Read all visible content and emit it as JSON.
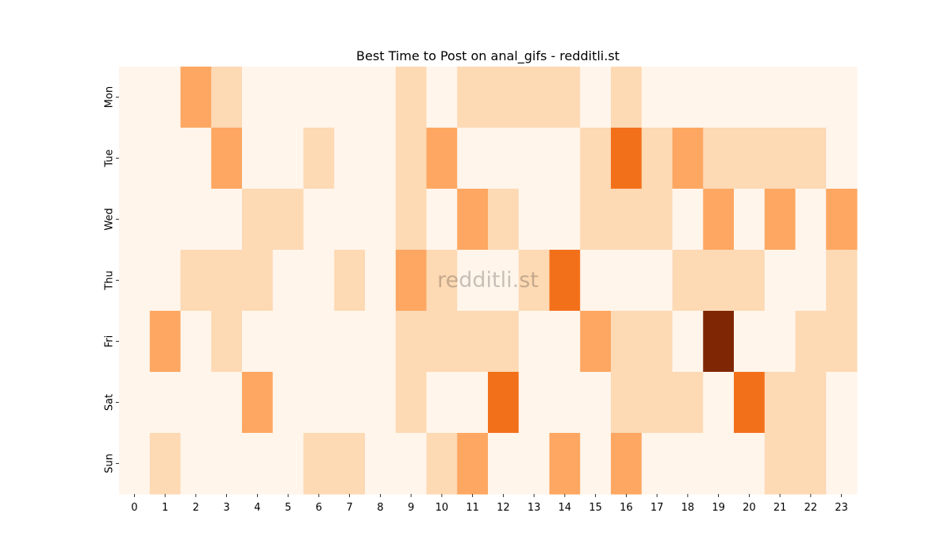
{
  "chart_data": {
    "type": "heatmap",
    "title": "Best Time to Post on anal_gifs - redditli.st",
    "watermark": "redditli.st",
    "x_labels": [
      "0",
      "1",
      "2",
      "3",
      "4",
      "5",
      "6",
      "7",
      "8",
      "9",
      "10",
      "11",
      "12",
      "13",
      "14",
      "15",
      "16",
      "17",
      "18",
      "19",
      "20",
      "21",
      "22",
      "23"
    ],
    "y_labels": [
      "Mon",
      "Tue",
      "Wed",
      "Thu",
      "Fri",
      "Sat",
      "Sun"
    ],
    "values": [
      [
        0,
        0,
        2,
        1,
        0,
        0,
        0,
        0,
        0,
        1,
        0,
        1,
        1,
        1,
        1,
        0,
        1,
        0,
        0,
        0,
        0,
        0,
        0,
        0
      ],
      [
        0,
        0,
        0,
        2,
        0,
        0,
        1,
        0,
        0,
        1,
        2,
        0,
        0,
        0,
        0,
        1,
        3,
        1,
        2,
        1,
        1,
        1,
        1,
        0
      ],
      [
        0,
        0,
        0,
        0,
        1,
        1,
        0,
        0,
        0,
        1,
        0,
        2,
        1,
        0,
        0,
        1,
        1,
        1,
        0,
        2,
        0,
        2,
        0,
        2
      ],
      [
        0,
        0,
        1,
        1,
        1,
        0,
        0,
        1,
        0,
        2,
        1,
        0,
        0,
        1,
        3,
        0,
        0,
        0,
        1,
        1,
        1,
        0,
        0,
        1
      ],
      [
        0,
        2,
        0,
        1,
        0,
        0,
        0,
        0,
        0,
        1,
        1,
        1,
        1,
        0,
        0,
        2,
        1,
        1,
        0,
        5,
        0,
        0,
        1,
        1
      ],
      [
        0,
        0,
        0,
        0,
        2,
        0,
        0,
        0,
        0,
        1,
        0,
        0,
        3,
        0,
        0,
        0,
        1,
        1,
        1,
        0,
        3,
        1,
        1,
        0
      ],
      [
        0,
        1,
        0,
        0,
        0,
        0,
        1,
        1,
        0,
        0,
        1,
        2,
        0,
        0,
        2,
        0,
        2,
        0,
        0,
        0,
        0,
        1,
        1,
        0
      ]
    ],
    "colorscale": {
      "0": "#fff5eb",
      "1": "#fdd9b4",
      "2": "#fda762",
      "3": "#f3701b",
      "4": "#c54102",
      "5": "#7f2704"
    },
    "colorbar": false,
    "grid": false
  }
}
